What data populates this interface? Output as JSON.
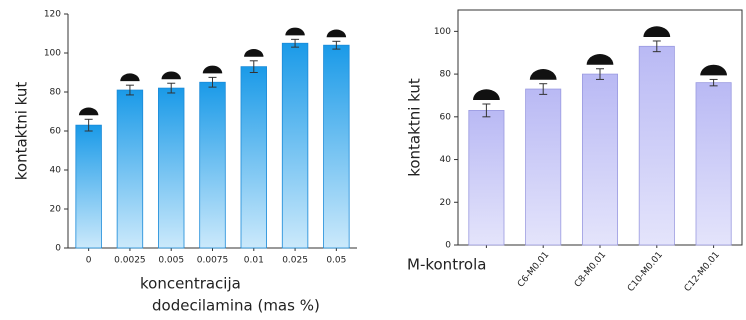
{
  "chart_data": [
    {
      "type": "bar",
      "ylabel": "kontaktni kut",
      "xlabel": [
        "koncentracija",
        "dodecilamina (mas %)"
      ],
      "categories": [
        "0",
        "0.0025",
        "0.005",
        "0.0075",
        "0.01",
        "0.025",
        "0.05"
      ],
      "values": [
        63,
        81,
        82,
        85,
        93,
        105,
        104
      ],
      "errors": [
        3,
        2.5,
        2.5,
        2.5,
        3,
        2,
        2
      ],
      "color": "#1a9ae8",
      "ylim": [
        0,
        120
      ],
      "yticks": [
        0,
        20,
        40,
        60,
        80,
        100,
        120
      ]
    },
    {
      "type": "bar",
      "ylabel": "kontaktni kut",
      "categories": [
        "M-kontrola",
        "C6-M0.01",
        "C8-M0.01",
        "C10-M0.01",
        "C12-M0.01"
      ],
      "values": [
        63,
        73,
        80,
        93,
        76
      ],
      "errors": [
        3,
        2.5,
        2.5,
        2.5,
        1.5
      ],
      "color": "#c5c5f7",
      "ylim": [
        0,
        110
      ],
      "yticks": [
        0,
        20,
        40,
        60,
        80,
        100
      ]
    }
  ]
}
